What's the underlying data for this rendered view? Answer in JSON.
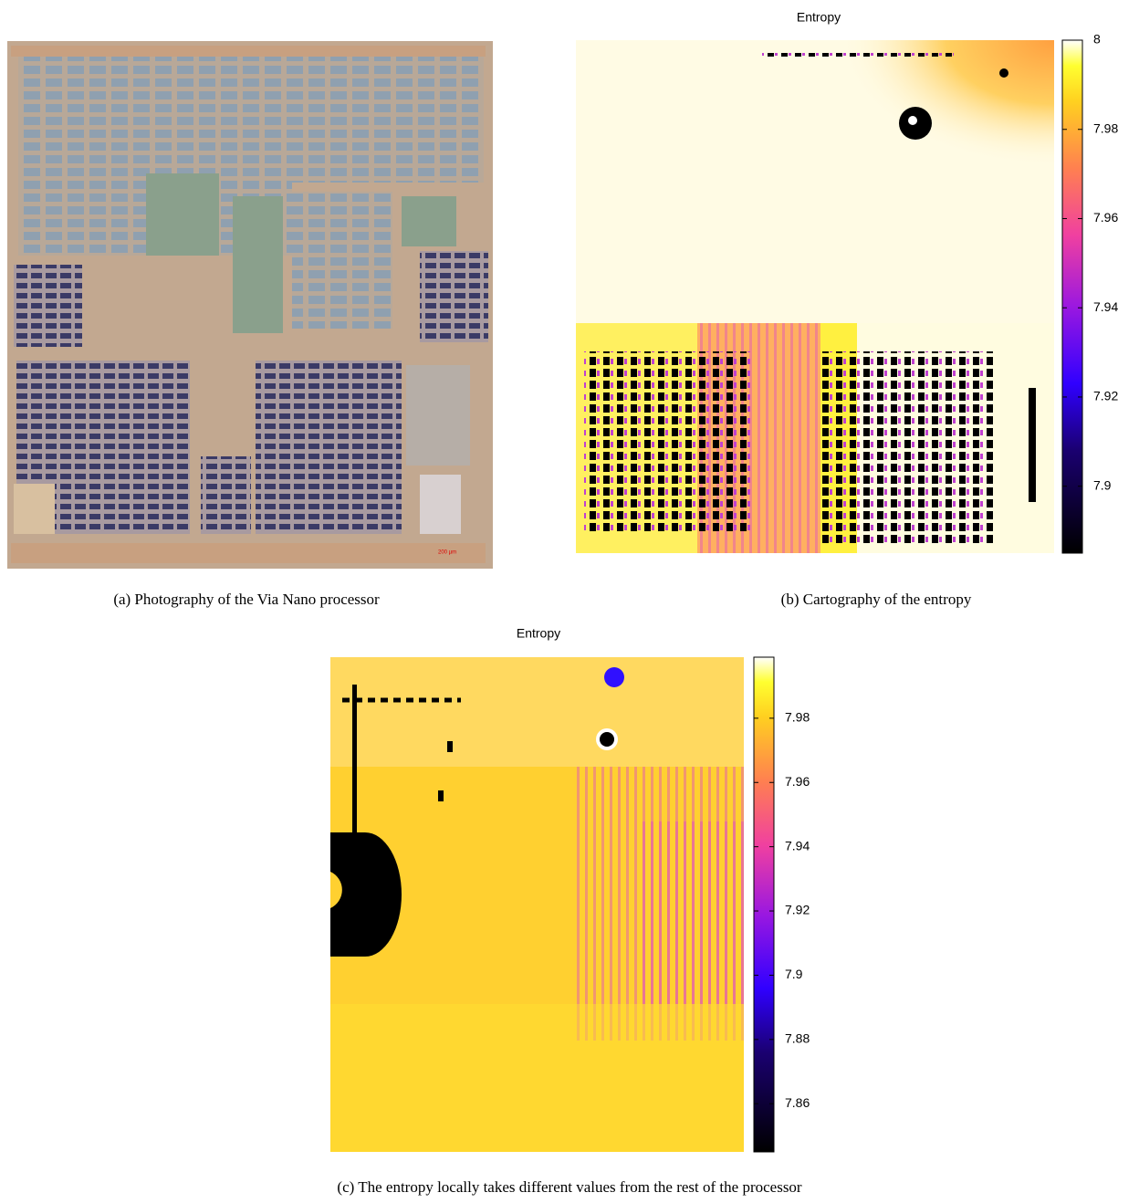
{
  "figure": {
    "panels": [
      {
        "caption": "(a) Photography of the Via Nano processor",
        "scale_label": "200 µm"
      },
      {
        "title": "Entropy",
        "caption": "(b) Cartography of the entropy",
        "colorbar": {
          "lim": [
            7.885,
            8.0
          ],
          "ticks": [
            8,
            7.98,
            7.96,
            7.94,
            7.92,
            7.9
          ]
        }
      },
      {
        "title": "Entropy",
        "caption": "(c) The entropy locally takes different values from the rest of the processor",
        "colorbar": {
          "lim": [
            7.845,
            7.999
          ],
          "ticks": [
            7.98,
            7.96,
            7.94,
            7.92,
            7.9,
            7.88,
            7.86
          ]
        }
      }
    ]
  }
}
